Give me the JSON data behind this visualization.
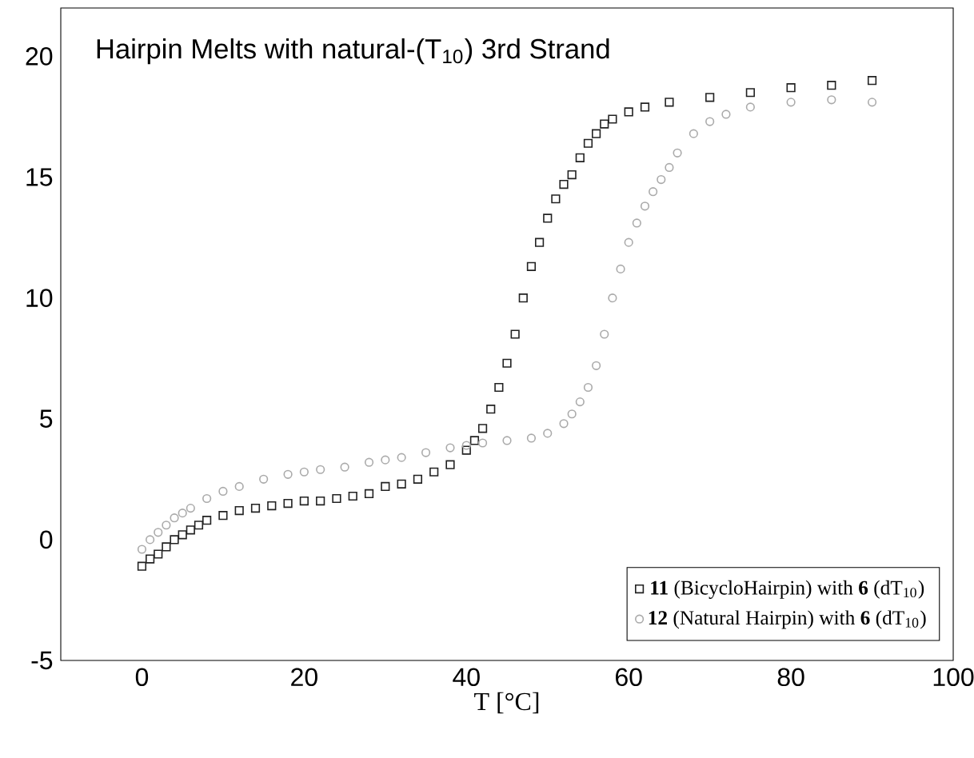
{
  "chart_data": {
    "type": "scatter",
    "title": "Hairpin Melts with natural-(T$_{10}$) 3rd Strand",
    "xlabel": "T [°C]",
    "xlim": [
      -10,
      100
    ],
    "ylim": [
      -5,
      22
    ],
    "xticks": [
      0,
      20,
      40,
      60,
      80,
      100
    ],
    "yticks": [
      -5,
      0,
      5,
      10,
      15,
      20
    ],
    "grid": false,
    "legend": "bottom right",
    "series": [
      {
        "name": "**11** (BicycloHairpin) with **6** (dT$_{10}$)",
        "color": "#222222",
        "marker": "square",
        "x": [
          0,
          1,
          2,
          3,
          4,
          5,
          6,
          7,
          8,
          10,
          12,
          14,
          16,
          18,
          20,
          22,
          24,
          26,
          28,
          30,
          32,
          34,
          36,
          38,
          40,
          41,
          42,
          43,
          44,
          45,
          46,
          47,
          48,
          49,
          50,
          51,
          52,
          53,
          54,
          55,
          56,
          57,
          58,
          60,
          62,
          65,
          70,
          75,
          80,
          85,
          90
        ],
        "values": [
          -1.1,
          -0.8,
          -0.6,
          -0.3,
          0,
          0.2,
          0.4,
          0.6,
          0.8,
          1.0,
          1.2,
          1.3,
          1.4,
          1.5,
          1.6,
          1.6,
          1.7,
          1.8,
          1.9,
          2.2,
          2.3,
          2.5,
          2.8,
          3.1,
          3.7,
          4.1,
          4.6,
          5.4,
          6.3,
          7.3,
          8.5,
          10,
          11.3,
          12.3,
          13.3,
          14.1,
          14.7,
          15.1,
          15.8,
          16.4,
          16.8,
          17.2,
          17.4,
          17.7,
          17.9,
          18.1,
          18.3,
          18.5,
          18.7,
          18.8,
          19.0
        ]
      },
      {
        "name": "**12** (Natural Hairpin) with **6** (dT$_{10}$)",
        "color": "#aaaaaa",
        "marker": "circle",
        "x": [
          0,
          1,
          2,
          3,
          4,
          5,
          6,
          8,
          10,
          12,
          15,
          18,
          20,
          22,
          25,
          28,
          30,
          32,
          35,
          38,
          40,
          42,
          45,
          48,
          50,
          52,
          53,
          54,
          55,
          56,
          57,
          58,
          59,
          60,
          61,
          62,
          63,
          64,
          65,
          66,
          68,
          70,
          72,
          75,
          80,
          85,
          90
        ],
        "values": [
          -0.4,
          0,
          0.3,
          0.6,
          0.9,
          1.1,
          1.3,
          1.7,
          2.0,
          2.2,
          2.5,
          2.7,
          2.8,
          2.9,
          3.0,
          3.2,
          3.3,
          3.4,
          3.6,
          3.8,
          3.9,
          4.0,
          4.1,
          4.2,
          4.4,
          4.8,
          5.2,
          5.7,
          6.3,
          7.2,
          8.5,
          10,
          11.2,
          12.3,
          13.1,
          13.8,
          14.4,
          14.9,
          15.4,
          16,
          16.8,
          17.3,
          17.6,
          17.9,
          18.1,
          18.2,
          18.1
        ]
      }
    ]
  }
}
